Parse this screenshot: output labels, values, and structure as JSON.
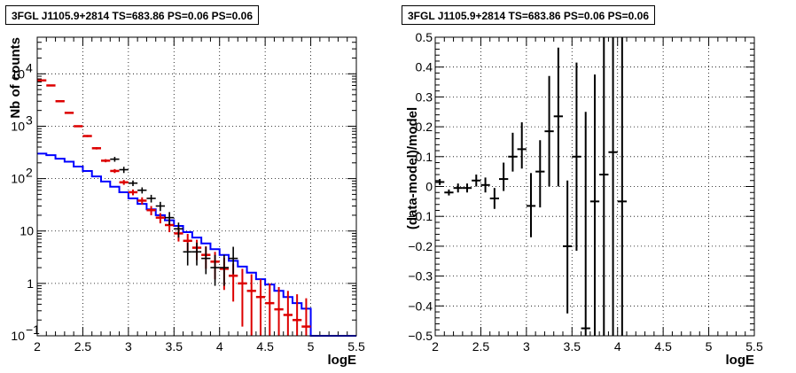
{
  "chart_data": [
    {
      "type": "line",
      "title": "3FGL J1105.9+2814 TS=683.86 PS=0.06 PS=0.06",
      "xlabel": "logE",
      "ylabel": "Nb of counts",
      "xlim": [
        2,
        5.5
      ],
      "ylim": [
        0.1,
        50000
      ],
      "y_scale": "log",
      "grid": true,
      "x_ticks": [
        "2",
        "2.5",
        "3",
        "3.5",
        "4",
        "4.5",
        "5",
        "5.5"
      ],
      "y_ticks": [
        "10^4",
        "10^3",
        "10^2",
        "10",
        "1",
        "10^-1"
      ],
      "series": [
        {
          "style": "blue-step",
          "color": "#0000ff",
          "x": [
            2.0,
            2.1,
            2.2,
            2.3,
            2.4,
            2.5,
            2.6,
            2.7,
            2.8,
            2.9,
            3.0,
            3.1,
            3.2,
            3.3,
            3.4,
            3.5,
            3.6,
            3.7,
            3.8,
            3.9,
            4.0,
            4.1,
            4.2,
            4.3,
            4.4,
            4.5,
            4.6,
            4.7,
            4.8,
            4.9,
            5.0,
            5.1,
            5.2,
            5.3,
            5.4
          ],
          "values": [
            300,
            280,
            240,
            210,
            170,
            140,
            110,
            88,
            70,
            55,
            42,
            33,
            26,
            20,
            16,
            12.5,
            9.5,
            7.5,
            5.8,
            4.5,
            3.5,
            2.7,
            2.1,
            1.6,
            1.2,
            0.95,
            0.72,
            0.55,
            0.42,
            0.33,
            0.1,
            0.1,
            0.1,
            0.1,
            0.1
          ]
        },
        {
          "style": "red-errorbars",
          "color": "#dd0000",
          "x": [
            2.05,
            2.15,
            2.25,
            2.35,
            2.45,
            2.55,
            2.65,
            2.75,
            2.85,
            2.95,
            3.05,
            3.15,
            3.25,
            3.35,
            3.45,
            3.55,
            3.65,
            3.75,
            3.85,
            3.95,
            4.05,
            4.15,
            4.25,
            4.35,
            4.45,
            4.55,
            4.65,
            4.75,
            4.85,
            4.95
          ],
          "values": [
            7500,
            6000,
            3000,
            1800,
            1000,
            650,
            380,
            220,
            140,
            85,
            55,
            38,
            25,
            18,
            13,
            9,
            6.5,
            4.8,
            3.5,
            2.6,
            1.9,
            1.4,
            1.0,
            0.72,
            0.55,
            0.42,
            0.32,
            0.25,
            0.2,
            0.15
          ],
          "y_low": [
            7300,
            5850,
            2900,
            1740,
            960,
            620,
            360,
            205,
            128,
            76,
            48,
            32,
            20,
            14,
            9.5,
            6.3,
            4.2,
            2.8,
            1.9,
            1.2,
            0.75,
            0.45,
            0.15,
            0.1,
            0.1,
            0.1,
            0.1,
            0.1,
            0.1,
            0.1
          ],
          "y_high": [
            7700,
            6150,
            3100,
            1860,
            1040,
            680,
            400,
            235,
            152,
            94,
            62,
            44,
            30,
            22,
            16.5,
            12,
            8.8,
            6.8,
            5.1,
            4.0,
            3.1,
            2.4,
            1.9,
            1.5,
            1.2,
            1.0,
            0.85,
            0.72,
            0.62,
            0.52
          ]
        },
        {
          "style": "black-errorbars",
          "color": "#000000",
          "x": [
            2.85,
            2.95,
            3.05,
            3.15,
            3.25,
            3.35,
            3.45,
            3.55,
            3.65,
            3.75,
            3.85,
            3.95,
            4.05,
            4.15
          ],
          "values": [
            235,
            148,
            82,
            60,
            42,
            30,
            18,
            11,
            4,
            4,
            3,
            2,
            2,
            3
          ],
          "y_low": [
            210,
            128,
            72,
            52,
            35,
            24,
            13,
            7.5,
            2.2,
            2.2,
            1.5,
            0.9,
            0.9,
            1.5
          ],
          "y_high": [
            260,
            168,
            92,
            68,
            49,
            36,
            23,
            14.5,
            6,
            6,
            5,
            3.5,
            3.5,
            5
          ]
        }
      ]
    },
    {
      "type": "scatter",
      "title": "3FGL J1105.9+2814 TS=683.86 PS=0.06 PS=0.06",
      "xlabel": "logE",
      "ylabel": "(data-model)/model",
      "xlim": [
        2,
        5.5
      ],
      "ylim": [
        -0.5,
        0.5
      ],
      "grid": true,
      "x_ticks": [
        "2",
        "2.5",
        "3",
        "3.5",
        "4",
        "4.5",
        "5",
        "5.5"
      ],
      "y_ticks": [
        "0.5",
        "0.4",
        "0.3",
        "0.2",
        "0.1",
        "0",
        "-0.1",
        "-0.2",
        "-0.3",
        "-0.4",
        "-0.5"
      ],
      "series": [
        {
          "color": "#000000",
          "x": [
            2.05,
            2.15,
            2.25,
            2.35,
            2.45,
            2.55,
            2.65,
            2.75,
            2.85,
            2.95,
            3.05,
            3.15,
            3.25,
            3.35,
            3.45,
            3.55,
            3.65,
            3.75,
            3.85,
            3.95,
            4.05
          ],
          "values": [
            0.015,
            -0.02,
            -0.005,
            -0.005,
            0.02,
            0.005,
            -0.04,
            0.025,
            0.1,
            0.125,
            -0.065,
            0.05,
            0.185,
            0.235,
            -0.2,
            0.1,
            -0.475,
            -0.05,
            0.04,
            0.115,
            -0.05
          ],
          "y_low": [
            0.005,
            -0.03,
            -0.02,
            -0.02,
            0.0,
            -0.02,
            -0.075,
            -0.015,
            0.05,
            0.06,
            -0.17,
            -0.07,
            0.0,
            0.0,
            -0.425,
            -0.215,
            -0.5,
            -0.5,
            -0.5,
            -0.5,
            -0.5
          ],
          "y_high": [
            0.025,
            -0.01,
            0.01,
            0.01,
            0.04,
            0.03,
            -0.005,
            0.08,
            0.18,
            0.215,
            0.045,
            0.155,
            0.37,
            0.465,
            0.02,
            0.415,
            0.25,
            0.375,
            0.5,
            0.5,
            0.5
          ]
        }
      ]
    }
  ]
}
